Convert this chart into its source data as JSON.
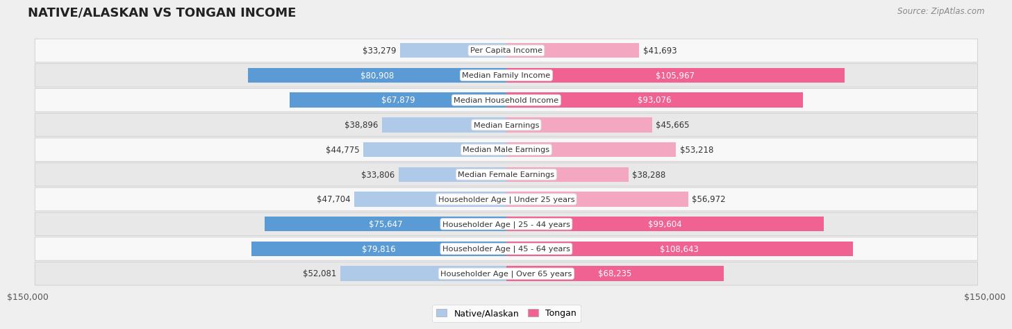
{
  "title": "NATIVE/ALASKAN VS TONGAN INCOME",
  "source": "Source: ZipAtlas.com",
  "categories": [
    "Per Capita Income",
    "Median Family Income",
    "Median Household Income",
    "Median Earnings",
    "Median Male Earnings",
    "Median Female Earnings",
    "Householder Age | Under 25 years",
    "Householder Age | 25 - 44 years",
    "Householder Age | 45 - 64 years",
    "Householder Age | Over 65 years"
  ],
  "native_values": [
    33279,
    80908,
    67879,
    38896,
    44775,
    33806,
    47704,
    75647,
    79816,
    52081
  ],
  "tongan_values": [
    41693,
    105967,
    93076,
    45665,
    53218,
    38288,
    56972,
    99604,
    108643,
    68235
  ],
  "native_label": "Native/Alaskan",
  "tongan_label": "Tongan",
  "native_color_strong": "#5B9BD5",
  "native_color_light": "#AFC9E8",
  "tongan_color_strong": "#F06292",
  "tongan_color_light": "#F4A7C0",
  "axis_max": 150000,
  "background_color": "#efefef",
  "row_bg_even": "#f8f8f8",
  "row_bg_odd": "#e8e8e8",
  "label_fontsize": 8.5,
  "title_fontsize": 13,
  "source_fontsize": 8.5,
  "strong_threshold": 60000
}
